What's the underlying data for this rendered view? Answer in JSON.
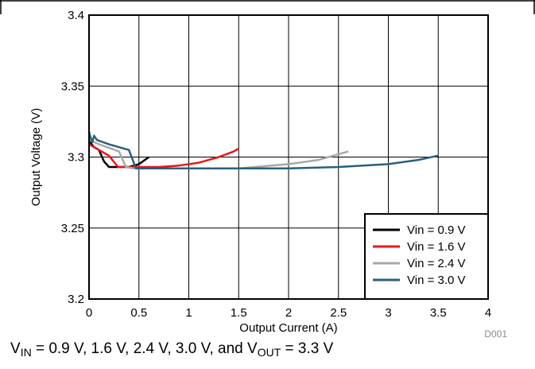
{
  "chart_data": {
    "type": "line",
    "title": "",
    "xlabel": "Output Current (A)",
    "ylabel": "Output Voltage (V)",
    "xlim": [
      0,
      4
    ],
    "ylim": [
      3.2,
      3.4
    ],
    "x_ticks": [
      0,
      0.5,
      1,
      1.5,
      2,
      2.5,
      3,
      3.5,
      4
    ],
    "y_ticks": [
      3.2,
      3.25,
      3.3,
      3.35,
      3.4
    ],
    "x_tick_labels": [
      "0",
      "0.5",
      "1",
      "1.5",
      "2",
      "2.5",
      "3",
      "3.5",
      "4"
    ],
    "y_tick_labels": [
      "3.2",
      "3.25",
      "3.3",
      "3.35",
      "3.4"
    ],
    "grid": true,
    "legend_position": "bottom-right",
    "series": [
      {
        "name": "Vin = 0.9 V",
        "color": "#000000",
        "x": [
          0,
          0.05,
          0.1,
          0.15,
          0.2,
          0.25,
          0.3,
          0.4,
          0.5,
          0.6
        ],
        "y": [
          3.311,
          3.307,
          3.305,
          3.297,
          3.293,
          3.293,
          3.293,
          3.293,
          3.295,
          3.3
        ]
      },
      {
        "name": "Vin = 1.6 V",
        "color": "#e8161b",
        "x": [
          0,
          0.1,
          0.2,
          0.29,
          0.35,
          0.5,
          0.7,
          0.9,
          1.1,
          1.3,
          1.45,
          1.5
        ],
        "y": [
          3.309,
          3.305,
          3.301,
          3.293,
          3.293,
          3.293,
          3.293,
          3.294,
          3.296,
          3.3,
          3.304,
          3.306
        ]
      },
      {
        "name": "Vin = 2.4 V",
        "color": "#a8a8a8",
        "x": [
          0,
          0.1,
          0.3,
          0.37,
          0.45,
          1,
          1.5,
          2,
          2.3,
          2.5,
          2.6
        ],
        "y": [
          3.312,
          3.309,
          3.304,
          3.293,
          3.292,
          3.292,
          3.292,
          3.295,
          3.298,
          3.302,
          3.304
        ]
      },
      {
        "name": "Vin = 3.0 V",
        "color": "#2a5f7e",
        "x": [
          0,
          0.03,
          0.05,
          0.08,
          0.2,
          0.35,
          0.4,
          0.47,
          1,
          1.5,
          2,
          2.5,
          3,
          3.3,
          3.5
        ],
        "y": [
          3.318,
          3.31,
          3.315,
          3.312,
          3.309,
          3.306,
          3.305,
          3.292,
          3.292,
          3.292,
          3.292,
          3.293,
          3.295,
          3.298,
          3.301
        ]
      }
    ]
  },
  "figure_tag": "D001",
  "caption": {
    "v_in": "V",
    "v_in_sub": "IN",
    "middle": " = 0.9 V, 1.6 V, 2.4 V, 3.0 V, and V",
    "v_out_sub": "OUT",
    "end": " = 3.3 V"
  }
}
